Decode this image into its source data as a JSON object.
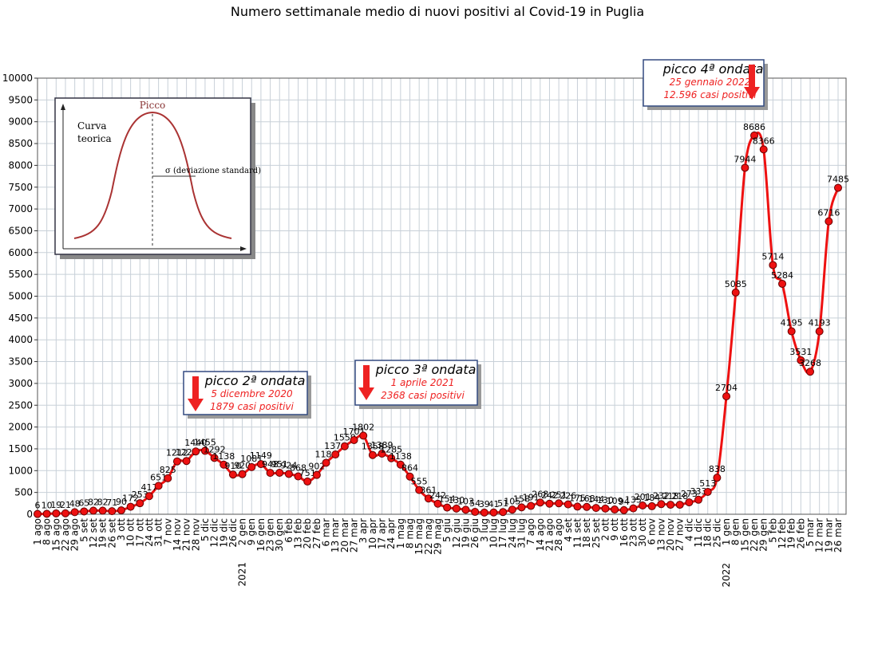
{
  "chart_data": {
    "type": "line",
    "title": "Numero settimanale medio di nuovi positivi al Covid-19 in Puglia",
    "categories": [
      "1 ago",
      "8 ago",
      "15 ago",
      "22 ago",
      "29 ago",
      "5 set",
      "12 set",
      "19 set",
      "26 set",
      "3 ott",
      "10 ott",
      "17 ott",
      "24 ott",
      "31 ott",
      "7 nov",
      "14 nov",
      "21 nov",
      "28 nov",
      "5 dic",
      "12 dic",
      "19 dic",
      "26 dic",
      "2 gen",
      "9 gen",
      "16 gen",
      "23 gen",
      "30 gen",
      "6 feb",
      "13 feb",
      "20 feb",
      "27 feb",
      "6 mar",
      "13 mar",
      "20 mar",
      "27 mar",
      "3 apr",
      "10 apr",
      "17 apr",
      "24 apr",
      "1 mag",
      "8 mag",
      "15 mag",
      "22 mag",
      "29 mag",
      "5 giu",
      "12 giu",
      "19 giu",
      "26 giu",
      "3 lug",
      "10 lug",
      "17 lug",
      "24 lug",
      "31 lug",
      "7 ago",
      "14 ago",
      "21 ago",
      "28 ago",
      "4 set",
      "11 set",
      "18 set",
      "25 set",
      "2 ott",
      "9 ott",
      "16 ott",
      "23 ott",
      "30 ott",
      "6 nov",
      "13 nov",
      "20 nov",
      "27 nov",
      "4 dic",
      "11 dic",
      "18 dic",
      "25 dic",
      "1 gen",
      "8 gen",
      "15 gen",
      "22 gen",
      "29 gen",
      "5 feb",
      "12 feb",
      "19 feb",
      "26 feb",
      "5 mar",
      "12 mar",
      "19 mar",
      "26 mar"
    ],
    "year_labels": [
      "2021",
      "2022"
    ],
    "series": [
      {
        "name": "Nuovi positivi",
        "color": "#ee1111",
        "values": [
          6,
          10,
          19,
          21,
          48,
          65,
          82,
          82,
          71,
          90,
          172,
          253,
          417,
          651,
          825,
          1212,
          1221,
          1440,
          1455,
          1292,
          1138,
          910,
          920,
          1081,
          1149,
          948,
          951,
          924,
          868,
          751,
          902,
          1180,
          1370,
          1559,
          1701,
          1802,
          1358,
          1389,
          1285,
          1138,
          864,
          555,
          361,
          242,
          154,
          130,
          103,
          54,
          39,
          41,
          51,
          105,
          158,
          191,
          268,
          242,
          251,
          226,
          175,
          168,
          144,
          130,
          109,
          94,
          135,
          201,
          184,
          232,
          218,
          218,
          273,
          333,
          513,
          838,
          2704,
          5085,
          7944,
          8686,
          8366,
          5714,
          5284,
          4195,
          3531,
          3268,
          4193,
          6716,
          7485
        ]
      }
    ],
    "ylim": [
      0,
      10000
    ],
    "yticks": [
      0,
      500,
      1000,
      1500,
      2000,
      2500,
      3000,
      3500,
      4000,
      4500,
      5000,
      5500,
      6000,
      6500,
      7000,
      7500,
      8000,
      8500,
      9000,
      9500,
      10000
    ],
    "grid": true,
    "annotations": [
      {
        "title": "picco 2ª ondata",
        "date": "5 dicembre 2020",
        "cases": "1879 casi positivi"
      },
      {
        "title": "picco 3ª ondata",
        "date": "1 aprile 2021",
        "cases": "2368 casi positivi"
      },
      {
        "title": "picco 4ª ondata",
        "date": "25 gennaio 2022",
        "cases": "12.596 casi positivi"
      }
    ],
    "inset": {
      "peak": "Picco",
      "curve": [
        "Curva",
        "teorica"
      ],
      "sigma": "σ  (deviazione standard)"
    }
  }
}
